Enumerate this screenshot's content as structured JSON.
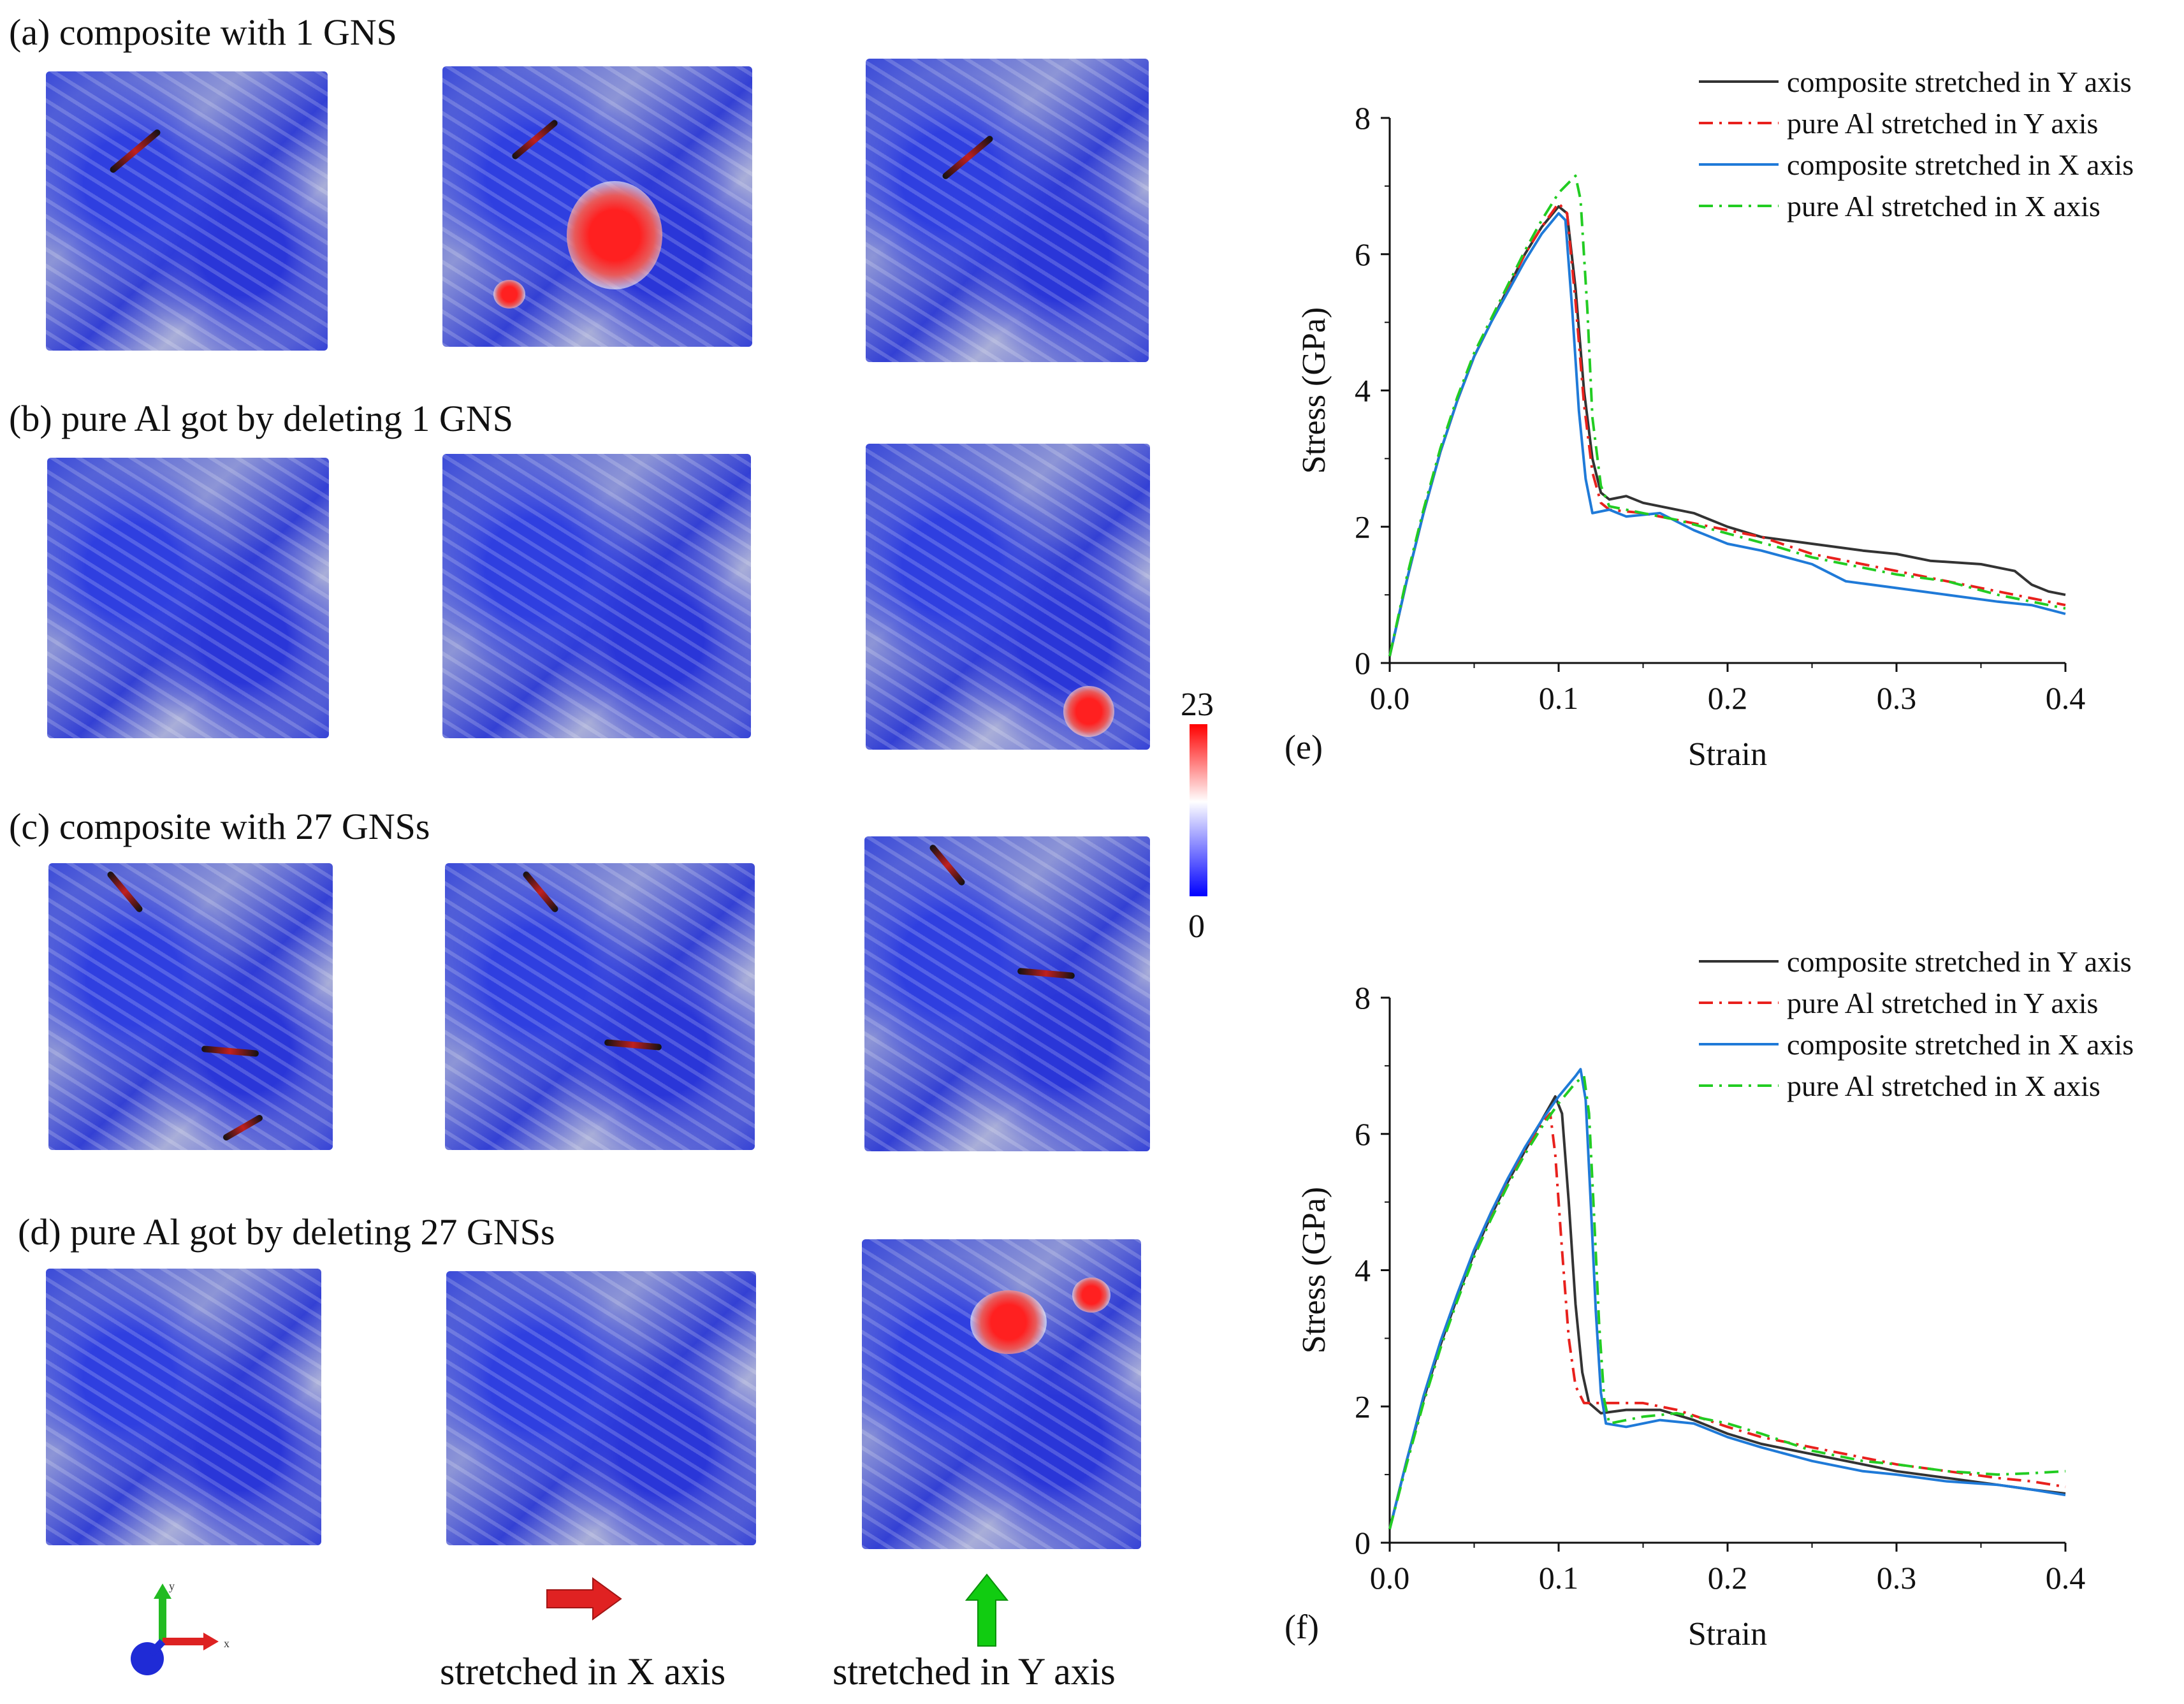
{
  "panel_labels": {
    "a": "(a) composite with 1 GNS",
    "b": "(b) pure Al got by deleting 1 GNS",
    "c": "(c) composite with 27 GNSs",
    "d": "(d) pure Al got by deleting 27 GNSs"
  },
  "colorbar": {
    "max": "23",
    "min": "0",
    "colors": [
      "#0000ff",
      "#ffffff",
      "#ff0000"
    ]
  },
  "direction_labels": {
    "x": "stretched in X axis",
    "y": "stretched in Y axis"
  },
  "axis_triad": {
    "y": "y",
    "x": "x"
  },
  "chart_data": [
    {
      "id": "e",
      "type": "line",
      "panel_label": "(e)",
      "xlabel": "Strain",
      "ylabel": "Stress (GPa)",
      "xlim": [
        0.0,
        0.4
      ],
      "ylim": [
        0,
        8
      ],
      "xticks": [
        "0.0",
        "0.1",
        "0.2",
        "0.3",
        "0.4"
      ],
      "yticks": [
        "0",
        "2",
        "4",
        "6",
        "8"
      ],
      "legend_position": "top-right",
      "series": [
        {
          "name": "composite stretched in Y axis",
          "color": "#333333",
          "dash": "solid",
          "points": [
            [
              0,
              0.1
            ],
            [
              0.01,
              1.2
            ],
            [
              0.02,
              2.2
            ],
            [
              0.03,
              3.1
            ],
            [
              0.04,
              3.85
            ],
            [
              0.05,
              4.5
            ],
            [
              0.06,
              5.0
            ],
            [
              0.07,
              5.5
            ],
            [
              0.08,
              6.0
            ],
            [
              0.09,
              6.4
            ],
            [
              0.1,
              6.7
            ],
            [
              0.105,
              6.6
            ],
            [
              0.11,
              5.5
            ],
            [
              0.115,
              4.0
            ],
            [
              0.12,
              3.0
            ],
            [
              0.125,
              2.5
            ],
            [
              0.13,
              2.4
            ],
            [
              0.14,
              2.45
            ],
            [
              0.15,
              2.35
            ],
            [
              0.16,
              2.3
            ],
            [
              0.18,
              2.2
            ],
            [
              0.2,
              2.0
            ],
            [
              0.22,
              1.85
            ],
            [
              0.25,
              1.75
            ],
            [
              0.28,
              1.65
            ],
            [
              0.3,
              1.6
            ],
            [
              0.32,
              1.5
            ],
            [
              0.35,
              1.45
            ],
            [
              0.37,
              1.35
            ],
            [
              0.38,
              1.15
            ],
            [
              0.39,
              1.05
            ],
            [
              0.4,
              1.0
            ]
          ]
        },
        {
          "name": "pure Al stretched in Y axis",
          "color": "#e8211d",
          "dash": "dashdot",
          "points": [
            [
              0,
              0.1
            ],
            [
              0.01,
              1.2
            ],
            [
              0.02,
              2.2
            ],
            [
              0.03,
              3.1
            ],
            [
              0.04,
              3.85
            ],
            [
              0.05,
              4.5
            ],
            [
              0.06,
              5.0
            ],
            [
              0.07,
              5.5
            ],
            [
              0.08,
              6.0
            ],
            [
              0.09,
              6.4
            ],
            [
              0.1,
              6.75
            ],
            [
              0.105,
              6.6
            ],
            [
              0.11,
              5.3
            ],
            [
              0.115,
              3.8
            ],
            [
              0.12,
              2.8
            ],
            [
              0.125,
              2.35
            ],
            [
              0.13,
              2.25
            ],
            [
              0.15,
              2.2
            ],
            [
              0.17,
              2.1
            ],
            [
              0.2,
              1.95
            ],
            [
              0.22,
              1.85
            ],
            [
              0.25,
              1.6
            ],
            [
              0.28,
              1.45
            ],
            [
              0.3,
              1.35
            ],
            [
              0.33,
              1.2
            ],
            [
              0.35,
              1.1
            ],
            [
              0.38,
              0.95
            ],
            [
              0.4,
              0.85
            ]
          ]
        },
        {
          "name": "composite stretched in X axis",
          "color": "#1f7ad8",
          "dash": "solid",
          "points": [
            [
              0,
              0.1
            ],
            [
              0.01,
              1.2
            ],
            [
              0.02,
              2.2
            ],
            [
              0.03,
              3.1
            ],
            [
              0.04,
              3.85
            ],
            [
              0.05,
              4.5
            ],
            [
              0.06,
              5.0
            ],
            [
              0.07,
              5.45
            ],
            [
              0.08,
              5.9
            ],
            [
              0.09,
              6.3
            ],
            [
              0.1,
              6.6
            ],
            [
              0.104,
              6.5
            ],
            [
              0.108,
              5.2
            ],
            [
              0.112,
              3.7
            ],
            [
              0.116,
              2.7
            ],
            [
              0.12,
              2.2
            ],
            [
              0.13,
              2.25
            ],
            [
              0.14,
              2.15
            ],
            [
              0.16,
              2.2
            ],
            [
              0.18,
              1.95
            ],
            [
              0.2,
              1.75
            ],
            [
              0.22,
              1.65
            ],
            [
              0.25,
              1.45
            ],
            [
              0.27,
              1.2
            ],
            [
              0.3,
              1.1
            ],
            [
              0.33,
              1.0
            ],
            [
              0.36,
              0.9
            ],
            [
              0.38,
              0.85
            ],
            [
              0.4,
              0.72
            ]
          ]
        },
        {
          "name": "pure Al stretched in X axis",
          "color": "#22cc22",
          "dash": "dashdot",
          "points": [
            [
              0,
              0.1
            ],
            [
              0.01,
              1.25
            ],
            [
              0.02,
              2.25
            ],
            [
              0.03,
              3.15
            ],
            [
              0.04,
              3.9
            ],
            [
              0.05,
              4.55
            ],
            [
              0.06,
              5.05
            ],
            [
              0.07,
              5.55
            ],
            [
              0.08,
              6.05
            ],
            [
              0.09,
              6.5
            ],
            [
              0.1,
              6.9
            ],
            [
              0.11,
              7.15
            ],
            [
              0.113,
              6.8
            ],
            [
              0.117,
              5.2
            ],
            [
              0.12,
              3.6
            ],
            [
              0.125,
              2.6
            ],
            [
              0.13,
              2.3
            ],
            [
              0.15,
              2.2
            ],
            [
              0.17,
              2.1
            ],
            [
              0.2,
              1.9
            ],
            [
              0.23,
              1.7
            ],
            [
              0.25,
              1.55
            ],
            [
              0.28,
              1.4
            ],
            [
              0.3,
              1.3
            ],
            [
              0.33,
              1.2
            ],
            [
              0.36,
              1.0
            ],
            [
              0.38,
              0.9
            ],
            [
              0.4,
              0.8
            ]
          ]
        }
      ]
    },
    {
      "id": "f",
      "type": "line",
      "panel_label": "(f)",
      "xlabel": "Strain",
      "ylabel": "Stress (GPa)",
      "xlim": [
        0.0,
        0.4
      ],
      "ylim": [
        0,
        8
      ],
      "xticks": [
        "0.0",
        "0.1",
        "0.2",
        "0.3",
        "0.4"
      ],
      "yticks": [
        "0",
        "2",
        "4",
        "6",
        "8"
      ],
      "legend_position": "top-right",
      "series": [
        {
          "name": "composite stretched in Y axis",
          "color": "#333333",
          "dash": "solid",
          "points": [
            [
              0,
              0.2
            ],
            [
              0.01,
              1.2
            ],
            [
              0.02,
              2.1
            ],
            [
              0.03,
              2.9
            ],
            [
              0.04,
              3.6
            ],
            [
              0.05,
              4.25
            ],
            [
              0.06,
              4.8
            ],
            [
              0.07,
              5.3
            ],
            [
              0.08,
              5.75
            ],
            [
              0.09,
              6.2
            ],
            [
              0.098,
              6.55
            ],
            [
              0.102,
              6.3
            ],
            [
              0.106,
              5.0
            ],
            [
              0.11,
              3.5
            ],
            [
              0.114,
              2.5
            ],
            [
              0.118,
              2.05
            ],
            [
              0.125,
              1.9
            ],
            [
              0.14,
              1.95
            ],
            [
              0.16,
              1.95
            ],
            [
              0.18,
              1.8
            ],
            [
              0.2,
              1.6
            ],
            [
              0.22,
              1.45
            ],
            [
              0.25,
              1.3
            ],
            [
              0.28,
              1.15
            ],
            [
              0.3,
              1.05
            ],
            [
              0.33,
              0.95
            ],
            [
              0.36,
              0.85
            ],
            [
              0.38,
              0.78
            ],
            [
              0.4,
              0.72
            ]
          ]
        },
        {
          "name": "pure Al stretched in Y axis",
          "color": "#e8211d",
          "dash": "dashdot",
          "points": [
            [
              0,
              0.2
            ],
            [
              0.01,
              1.2
            ],
            [
              0.02,
              2.1
            ],
            [
              0.03,
              2.9
            ],
            [
              0.04,
              3.6
            ],
            [
              0.05,
              4.25
            ],
            [
              0.06,
              4.8
            ],
            [
              0.07,
              5.3
            ],
            [
              0.08,
              5.75
            ],
            [
              0.09,
              6.15
            ],
            [
              0.095,
              6.3
            ],
            [
              0.098,
              5.7
            ],
            [
              0.102,
              4.3
            ],
            [
              0.106,
              3.0
            ],
            [
              0.11,
              2.3
            ],
            [
              0.115,
              2.05
            ],
            [
              0.13,
              2.05
            ],
            [
              0.15,
              2.05
            ],
            [
              0.17,
              1.95
            ],
            [
              0.2,
              1.7
            ],
            [
              0.22,
              1.55
            ],
            [
              0.25,
              1.4
            ],
            [
              0.28,
              1.25
            ],
            [
              0.3,
              1.15
            ],
            [
              0.33,
              1.05
            ],
            [
              0.36,
              0.95
            ],
            [
              0.38,
              0.9
            ],
            [
              0.4,
              0.82
            ]
          ]
        },
        {
          "name": "composite stretched in X axis",
          "color": "#1f7ad8",
          "dash": "solid",
          "points": [
            [
              0,
              0.2
            ],
            [
              0.01,
              1.2
            ],
            [
              0.02,
              2.15
            ],
            [
              0.03,
              2.95
            ],
            [
              0.04,
              3.65
            ],
            [
              0.05,
              4.3
            ],
            [
              0.06,
              4.85
            ],
            [
              0.07,
              5.35
            ],
            [
              0.08,
              5.8
            ],
            [
              0.09,
              6.2
            ],
            [
              0.1,
              6.55
            ],
            [
              0.11,
              6.85
            ],
            [
              0.113,
              6.95
            ],
            [
              0.116,
              6.5
            ],
            [
              0.119,
              5.0
            ],
            [
              0.122,
              3.4
            ],
            [
              0.125,
              2.2
            ],
            [
              0.128,
              1.75
            ],
            [
              0.14,
              1.7
            ],
            [
              0.16,
              1.8
            ],
            [
              0.18,
              1.75
            ],
            [
              0.2,
              1.55
            ],
            [
              0.22,
              1.4
            ],
            [
              0.25,
              1.2
            ],
            [
              0.28,
              1.05
            ],
            [
              0.3,
              1.0
            ],
            [
              0.33,
              0.9
            ],
            [
              0.36,
              0.85
            ],
            [
              0.38,
              0.78
            ],
            [
              0.4,
              0.7
            ]
          ]
        },
        {
          "name": "pure Al stretched in X axis",
          "color": "#22cc22",
          "dash": "dashdot",
          "points": [
            [
              0,
              0.2
            ],
            [
              0.01,
              1.15
            ],
            [
              0.02,
              2.05
            ],
            [
              0.03,
              2.85
            ],
            [
              0.04,
              3.55
            ],
            [
              0.05,
              4.2
            ],
            [
              0.06,
              4.75
            ],
            [
              0.07,
              5.25
            ],
            [
              0.08,
              5.7
            ],
            [
              0.09,
              6.1
            ],
            [
              0.1,
              6.45
            ],
            [
              0.11,
              6.75
            ],
            [
              0.115,
              6.85
            ],
            [
              0.118,
              6.3
            ],
            [
              0.121,
              4.8
            ],
            [
              0.124,
              3.2
            ],
            [
              0.127,
              2.1
            ],
            [
              0.13,
              1.75
            ],
            [
              0.15,
              1.85
            ],
            [
              0.17,
              1.9
            ],
            [
              0.2,
              1.75
            ],
            [
              0.22,
              1.6
            ],
            [
              0.25,
              1.35
            ],
            [
              0.28,
              1.2
            ],
            [
              0.3,
              1.15
            ],
            [
              0.33,
              1.05
            ],
            [
              0.36,
              1.0
            ],
            [
              0.38,
              1.02
            ],
            [
              0.4,
              1.05
            ]
          ]
        }
      ]
    }
  ]
}
